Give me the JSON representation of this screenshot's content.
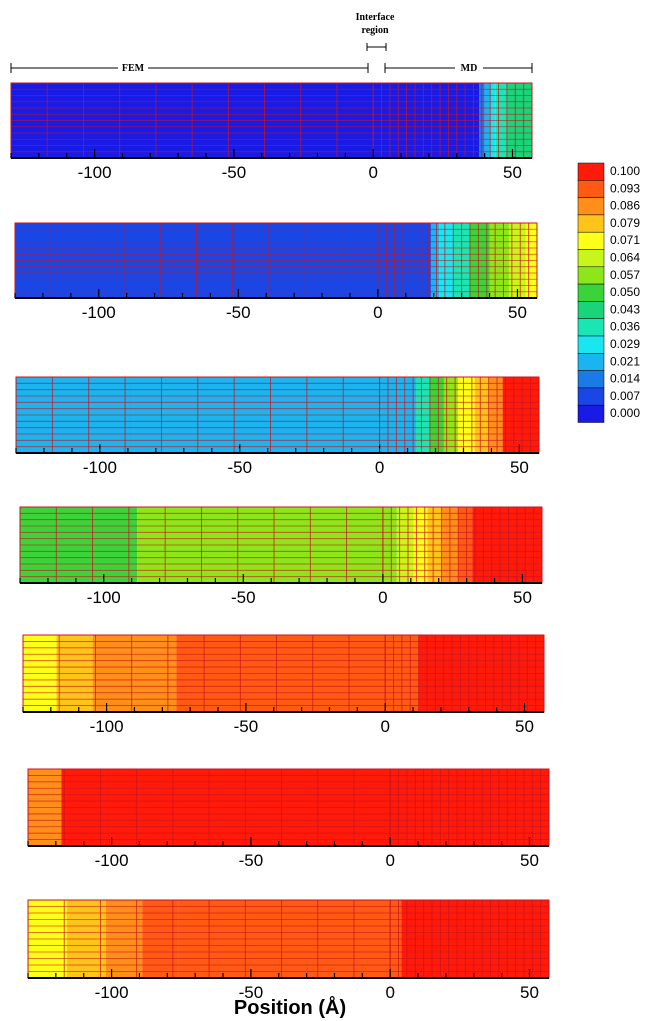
{
  "chart_data": {
    "type": "heatmap",
    "annotations": {
      "fem_label": "FEM",
      "md_label": "MD",
      "interface_label_line1": "Interface",
      "interface_label_line2": "region"
    },
    "xlabel": "Position (Å)",
    "colorbar": {
      "min": 0.0,
      "max": 0.1,
      "levels": [
        "0.100",
        "0.093",
        "0.086",
        "0.079",
        "0.071",
        "0.064",
        "0.057",
        "0.050",
        "0.043",
        "0.036",
        "0.029",
        "0.021",
        "0.014",
        "0.007",
        "0.000"
      ],
      "colors": [
        "#ff1a0a",
        "#ff5a14",
        "#ff8f1a",
        "#ffc41a",
        "#ffff1a",
        "#c8f51a",
        "#8ce61a",
        "#3ad43a",
        "#1ad47a",
        "#1ae6b4",
        "#1ae6f0",
        "#1ab4f0",
        "#1a7ae6",
        "#1a46e6",
        "#1a1ae6"
      ]
    },
    "panels": [
      {
        "xlim": [
          -130,
          57
        ],
        "ticks": [
          -100,
          -50,
          0,
          50
        ],
        "tick_labels": [
          "-100",
          "-50",
          "0",
          "50"
        ],
        "bands": [
          {
            "from": -130,
            "to": 38,
            "value": 0.0
          },
          {
            "from": 38,
            "to": 40,
            "value": 0.012
          },
          {
            "from": 40,
            "to": 42,
            "value": 0.022
          },
          {
            "from": 42,
            "to": 44,
            "value": 0.03
          },
          {
            "from": 44,
            "to": 48,
            "value": 0.036
          },
          {
            "from": 48,
            "to": 57,
            "value": 0.042
          }
        ]
      },
      {
        "xlim": [
          -130,
          57
        ],
        "ticks": [
          -100,
          -50,
          0,
          50
        ],
        "tick_labels": [
          "-100",
          "-50",
          "0",
          "50"
        ],
        "bands": [
          {
            "from": -130,
            "to": 19,
            "value": 0.005
          },
          {
            "from": 19,
            "to": 22,
            "value": 0.018
          },
          {
            "from": 22,
            "to": 27,
            "value": 0.03
          },
          {
            "from": 27,
            "to": 33,
            "value": 0.038
          },
          {
            "from": 33,
            "to": 40,
            "value": 0.048
          },
          {
            "from": 40,
            "to": 47,
            "value": 0.056
          },
          {
            "from": 47,
            "to": 53,
            "value": 0.065
          },
          {
            "from": 53,
            "to": 57,
            "value": 0.074
          }
        ]
      },
      {
        "xlim": [
          -130,
          57
        ],
        "ticks": [
          -100,
          -50,
          0,
          50
        ],
        "tick_labels": [
          "-100",
          "-50",
          "0",
          "50"
        ],
        "bands": [
          {
            "from": -130,
            "to": -88,
            "value": 0.018
          },
          {
            "from": -88,
            "to": 13,
            "value": 0.025
          },
          {
            "from": 13,
            "to": 18,
            "value": 0.035
          },
          {
            "from": 18,
            "to": 23,
            "value": 0.048
          },
          {
            "from": 23,
            "to": 28,
            "value": 0.06
          },
          {
            "from": 28,
            "to": 34,
            "value": 0.072
          },
          {
            "from": 34,
            "to": 39,
            "value": 0.08
          },
          {
            "from": 39,
            "to": 44,
            "value": 0.088
          },
          {
            "from": 44,
            "to": 57,
            "value": 0.1
          }
        ]
      },
      {
        "xlim": [
          -130,
          57
        ],
        "ticks": [
          -100,
          -50,
          0,
          50
        ],
        "tick_labels": [
          "-100",
          "-50",
          "0",
          "50"
        ],
        "bands": [
          {
            "from": -130,
            "to": -88,
            "value": 0.052
          },
          {
            "from": -88,
            "to": 5,
            "value": 0.06
          },
          {
            "from": 5,
            "to": 11,
            "value": 0.066
          },
          {
            "from": 11,
            "to": 16,
            "value": 0.074
          },
          {
            "from": 16,
            "to": 21,
            "value": 0.082
          },
          {
            "from": 21,
            "to": 27,
            "value": 0.088
          },
          {
            "from": 27,
            "to": 32,
            "value": 0.094
          },
          {
            "from": 32,
            "to": 57,
            "value": 0.1
          }
        ]
      },
      {
        "xlim": [
          -130,
          57
        ],
        "ticks": [
          -100,
          -50,
          0,
          50
        ],
        "tick_labels": [
          "-100",
          "-50",
          "0",
          "50"
        ],
        "bands": [
          {
            "from": -130,
            "to": -118,
            "value": 0.068
          },
          {
            "from": -118,
            "to": -105,
            "value": 0.079
          },
          {
            "from": -105,
            "to": -90,
            "value": 0.084
          },
          {
            "from": -90,
            "to": -75,
            "value": 0.088
          },
          {
            "from": -75,
            "to": 12,
            "value": 0.092
          },
          {
            "from": 12,
            "to": 57,
            "value": 0.1
          }
        ]
      },
      {
        "xlim": [
          -130,
          57
        ],
        "ticks": [
          -100,
          -50,
          0,
          50
        ],
        "tick_labels": [
          "-100",
          "-50",
          "0",
          "50"
        ],
        "bands": [
          {
            "from": -130,
            "to": -118,
            "value": 0.088
          },
          {
            "from": -118,
            "to": 57,
            "value": 0.1
          }
        ]
      },
      {
        "xlim": [
          -130,
          57
        ],
        "ticks": [
          -100,
          -50,
          0,
          50
        ],
        "tick_labels": [
          "-100",
          "-50",
          "0",
          "50"
        ],
        "bands": [
          {
            "from": -130,
            "to": -116,
            "value": 0.07
          },
          {
            "from": -116,
            "to": -102,
            "value": 0.079
          },
          {
            "from": -102,
            "to": -89,
            "value": 0.084
          },
          {
            "from": -89,
            "to": -76,
            "value": 0.09
          },
          {
            "from": -76,
            "to": 4,
            "value": 0.096
          },
          {
            "from": 4,
            "to": 57,
            "value": 0.1
          }
        ]
      }
    ]
  }
}
